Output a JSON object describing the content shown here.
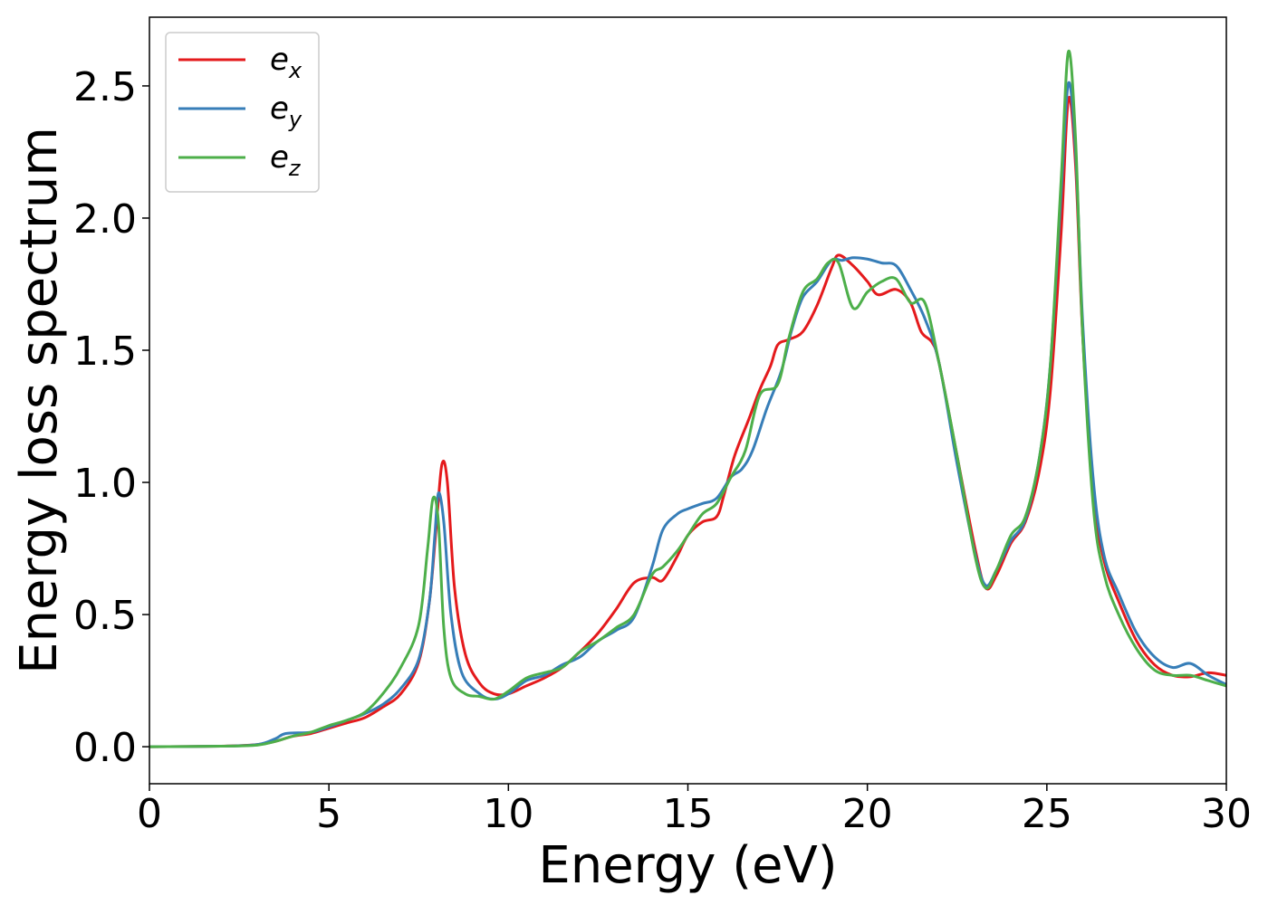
{
  "chart_data": {
    "type": "line",
    "title": "",
    "xlabel": "Energy (eV)",
    "ylabel": "Energy loss spectrum",
    "xlim": [
      0,
      30
    ],
    "ylim": [
      -0.14,
      2.76
    ],
    "xticks": [
      0,
      5,
      10,
      15,
      20,
      25,
      30
    ],
    "xtick_labels": [
      "0",
      "5",
      "10",
      "15",
      "20",
      "25",
      "30"
    ],
    "yticks": [
      0.0,
      0.5,
      1.0,
      1.5,
      2.0,
      2.5
    ],
    "ytick_labels": [
      "0.0",
      "0.5",
      "1.0",
      "1.5",
      "2.0",
      "2.5"
    ],
    "grid": false,
    "legend_position": "top-left",
    "series": [
      {
        "name": "e",
        "name_sub": "x",
        "color": "#e41a1c",
        "points": [
          [
            0,
            0
          ],
          [
            2,
            0.002
          ],
          [
            3,
            0.008
          ],
          [
            3.5,
            0.02
          ],
          [
            4,
            0.04
          ],
          [
            4.5,
            0.05
          ],
          [
            5,
            0.07
          ],
          [
            5.5,
            0.09
          ],
          [
            6,
            0.11
          ],
          [
            6.5,
            0.15
          ],
          [
            7,
            0.2
          ],
          [
            7.5,
            0.32
          ],
          [
            7.8,
            0.55
          ],
          [
            8.0,
            0.85
          ],
          [
            8.15,
            1.07
          ],
          [
            8.3,
            1.0
          ],
          [
            8.5,
            0.6
          ],
          [
            8.8,
            0.35
          ],
          [
            9.2,
            0.24
          ],
          [
            9.6,
            0.2
          ],
          [
            10,
            0.2
          ],
          [
            10.5,
            0.23
          ],
          [
            11,
            0.26
          ],
          [
            11.5,
            0.3
          ],
          [
            12,
            0.36
          ],
          [
            12.5,
            0.43
          ],
          [
            13,
            0.52
          ],
          [
            13.5,
            0.62
          ],
          [
            14,
            0.64
          ],
          [
            14.3,
            0.63
          ],
          [
            14.7,
            0.72
          ],
          [
            15,
            0.8
          ],
          [
            15.4,
            0.85
          ],
          [
            15.8,
            0.87
          ],
          [
            16,
            0.95
          ],
          [
            16.3,
            1.1
          ],
          [
            16.7,
            1.24
          ],
          [
            17,
            1.35
          ],
          [
            17.3,
            1.44
          ],
          [
            17.5,
            1.52
          ],
          [
            17.8,
            1.54
          ],
          [
            18.2,
            1.57
          ],
          [
            18.6,
            1.67
          ],
          [
            19,
            1.81
          ],
          [
            19.2,
            1.86
          ],
          [
            19.6,
            1.82
          ],
          [
            20,
            1.76
          ],
          [
            20.3,
            1.71
          ],
          [
            20.8,
            1.73
          ],
          [
            21.2,
            1.68
          ],
          [
            21.5,
            1.57
          ],
          [
            21.8,
            1.53
          ],
          [
            22,
            1.45
          ],
          [
            22.5,
            1.1
          ],
          [
            23,
            0.75
          ],
          [
            23.3,
            0.6
          ],
          [
            23.6,
            0.65
          ],
          [
            24,
            0.77
          ],
          [
            24.4,
            0.85
          ],
          [
            24.8,
            1.05
          ],
          [
            25.1,
            1.35
          ],
          [
            25.4,
            1.95
          ],
          [
            25.6,
            2.45
          ],
          [
            25.8,
            2.2
          ],
          [
            26,
            1.55
          ],
          [
            26.3,
            0.95
          ],
          [
            26.6,
            0.7
          ],
          [
            27,
            0.55
          ],
          [
            27.5,
            0.4
          ],
          [
            28,
            0.31
          ],
          [
            28.5,
            0.27
          ],
          [
            29,
            0.265
          ],
          [
            29.5,
            0.28
          ],
          [
            30,
            0.27
          ]
        ]
      },
      {
        "name": "e",
        "name_sub": "y",
        "color": "#377eb8",
        "points": [
          [
            0,
            0
          ],
          [
            2,
            0.002
          ],
          [
            3,
            0.008
          ],
          [
            3.5,
            0.03
          ],
          [
            3.8,
            0.05
          ],
          [
            4.5,
            0.055
          ],
          [
            5,
            0.075
          ],
          [
            5.5,
            0.1
          ],
          [
            6,
            0.125
          ],
          [
            6.5,
            0.16
          ],
          [
            7,
            0.22
          ],
          [
            7.5,
            0.33
          ],
          [
            7.8,
            0.55
          ],
          [
            7.95,
            0.8
          ],
          [
            8.05,
            0.96
          ],
          [
            8.2,
            0.85
          ],
          [
            8.4,
            0.5
          ],
          [
            8.7,
            0.28
          ],
          [
            9.2,
            0.2
          ],
          [
            9.6,
            0.18
          ],
          [
            10,
            0.2
          ],
          [
            10.5,
            0.25
          ],
          [
            11,
            0.27
          ],
          [
            11.5,
            0.31
          ],
          [
            12,
            0.34
          ],
          [
            12.5,
            0.4
          ],
          [
            13,
            0.44
          ],
          [
            13.5,
            0.49
          ],
          [
            14,
            0.68
          ],
          [
            14.3,
            0.82
          ],
          [
            14.7,
            0.88
          ],
          [
            15,
            0.9
          ],
          [
            15.4,
            0.92
          ],
          [
            15.8,
            0.94
          ],
          [
            16.2,
            1.02
          ],
          [
            16.5,
            1.05
          ],
          [
            16.8,
            1.12
          ],
          [
            17.2,
            1.28
          ],
          [
            17.6,
            1.42
          ],
          [
            17.9,
            1.58
          ],
          [
            18.2,
            1.7
          ],
          [
            18.6,
            1.76
          ],
          [
            19,
            1.84
          ],
          [
            19.3,
            1.84
          ],
          [
            19.6,
            1.85
          ],
          [
            20,
            1.845
          ],
          [
            20.4,
            1.83
          ],
          [
            20.8,
            1.82
          ],
          [
            21.2,
            1.73
          ],
          [
            21.6,
            1.62
          ],
          [
            22,
            1.45
          ],
          [
            22.5,
            1.07
          ],
          [
            23,
            0.73
          ],
          [
            23.3,
            0.61
          ],
          [
            23.6,
            0.67
          ],
          [
            24,
            0.78
          ],
          [
            24.4,
            0.86
          ],
          [
            24.8,
            1.1
          ],
          [
            25.1,
            1.45
          ],
          [
            25.4,
            2.1
          ],
          [
            25.6,
            2.51
          ],
          [
            25.8,
            2.25
          ],
          [
            26,
            1.6
          ],
          [
            26.3,
            1.0
          ],
          [
            26.6,
            0.72
          ],
          [
            27,
            0.58
          ],
          [
            27.5,
            0.43
          ],
          [
            28,
            0.34
          ],
          [
            28.5,
            0.3
          ],
          [
            29,
            0.315
          ],
          [
            29.5,
            0.27
          ],
          [
            30,
            0.235
          ]
        ]
      },
      {
        "name": "e",
        "name_sub": "z",
        "color": "#4daf4a",
        "points": [
          [
            0,
            0
          ],
          [
            2,
            0.002
          ],
          [
            3,
            0.006
          ],
          [
            3.5,
            0.02
          ],
          [
            4,
            0.04
          ],
          [
            4.5,
            0.055
          ],
          [
            5,
            0.08
          ],
          [
            5.5,
            0.1
          ],
          [
            6,
            0.13
          ],
          [
            6.5,
            0.2
          ],
          [
            7,
            0.3
          ],
          [
            7.5,
            0.46
          ],
          [
            7.75,
            0.75
          ],
          [
            7.9,
            0.94
          ],
          [
            8.05,
            0.85
          ],
          [
            8.2,
            0.45
          ],
          [
            8.4,
            0.26
          ],
          [
            8.8,
            0.2
          ],
          [
            9.2,
            0.19
          ],
          [
            9.6,
            0.18
          ],
          [
            10,
            0.21
          ],
          [
            10.5,
            0.26
          ],
          [
            11,
            0.28
          ],
          [
            11.5,
            0.3
          ],
          [
            12,
            0.36
          ],
          [
            12.5,
            0.4
          ],
          [
            13,
            0.45
          ],
          [
            13.5,
            0.5
          ],
          [
            14,
            0.65
          ],
          [
            14.3,
            0.68
          ],
          [
            14.7,
            0.74
          ],
          [
            15,
            0.8
          ],
          [
            15.4,
            0.88
          ],
          [
            15.8,
            0.92
          ],
          [
            16.2,
            1.02
          ],
          [
            16.6,
            1.12
          ],
          [
            17,
            1.33
          ],
          [
            17.5,
            1.37
          ],
          [
            17.8,
            1.54
          ],
          [
            18.2,
            1.72
          ],
          [
            18.6,
            1.77
          ],
          [
            18.9,
            1.83
          ],
          [
            19.2,
            1.83
          ],
          [
            19.6,
            1.66
          ],
          [
            20,
            1.72
          ],
          [
            20.4,
            1.76
          ],
          [
            20.8,
            1.77
          ],
          [
            21.2,
            1.68
          ],
          [
            21.6,
            1.68
          ],
          [
            22,
            1.45
          ],
          [
            22.5,
            1.1
          ],
          [
            23,
            0.72
          ],
          [
            23.3,
            0.6
          ],
          [
            23.6,
            0.67
          ],
          [
            24,
            0.8
          ],
          [
            24.4,
            0.87
          ],
          [
            24.8,
            1.1
          ],
          [
            25.1,
            1.45
          ],
          [
            25.4,
            2.15
          ],
          [
            25.6,
            2.63
          ],
          [
            25.8,
            2.3
          ],
          [
            26,
            1.55
          ],
          [
            26.3,
            0.9
          ],
          [
            26.6,
            0.65
          ],
          [
            27,
            0.5
          ],
          [
            27.5,
            0.37
          ],
          [
            28,
            0.29
          ],
          [
            28.5,
            0.27
          ],
          [
            29,
            0.27
          ],
          [
            29.5,
            0.25
          ],
          [
            30,
            0.23
          ]
        ]
      }
    ]
  }
}
